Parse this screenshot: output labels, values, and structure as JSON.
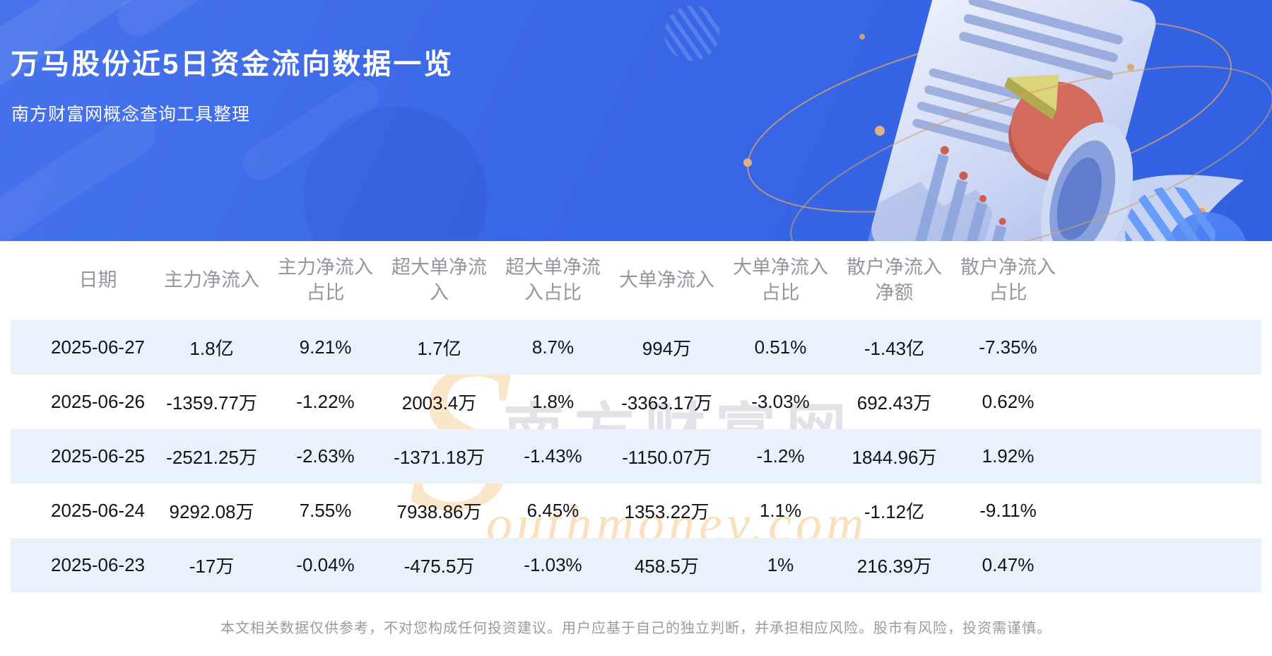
{
  "hero": {
    "title": "万马股份近5日资金流向数据一览",
    "subtitle": "南方财富网概念查询工具整理"
  },
  "chart_data": {
    "type": "table",
    "title": "万马股份近5日资金流向数据一览",
    "columns": [
      "日期",
      "主力净流入",
      "主力净流入占比",
      "超大单净流入",
      "超大单净流入占比",
      "大单净流入",
      "大单净流入占比",
      "散户净流入净额",
      "散户净流入占比"
    ],
    "rows": [
      [
        "2025-06-27",
        "1.8亿",
        "9.21%",
        "1.7亿",
        "8.7%",
        "994万",
        "0.51%",
        "-1.43亿",
        "-7.35%"
      ],
      [
        "2025-06-26",
        "-1359.77万",
        "-1.22%",
        "2003.4万",
        "1.8%",
        "-3363.17万",
        "-3.03%",
        "692.43万",
        "0.62%"
      ],
      [
        "2025-06-25",
        "-2521.25万",
        "-2.63%",
        "-1371.18万",
        "-1.43%",
        "-1150.07万",
        "-1.2%",
        "1844.96万",
        "1.92%"
      ],
      [
        "2025-06-24",
        "9292.08万",
        "7.55%",
        "7938.86万",
        "6.45%",
        "1353.22万",
        "1.1%",
        "-1.12亿",
        "-9.11%"
      ],
      [
        "2025-06-23",
        "-17万",
        "-0.04%",
        "-475.5万",
        "-1.03%",
        "458.5万",
        "1%",
        "216.39万",
        "0.47%"
      ]
    ]
  },
  "table": {
    "display_headers": [
      "日期",
      "主力净流入",
      "主力净流入\n占比",
      "超大单净流\n入",
      "超大单净流\n入占比",
      "大单净流入",
      "大单净流入\n占比",
      "散户净流入\n净额",
      "散户净流入\n占比"
    ]
  },
  "watermark": {
    "s": "S",
    "cn": "南方财富网",
    "en": "outhmoney.com"
  },
  "footer": {
    "disclaimer": "本文相关数据仅供参考，不对您构成任何投资建议。用户应基于自己的独立判断，并承担相应风险。股市有风险，投资需谨慎。"
  },
  "colors": {
    "hero_blue": "#3a67e6",
    "stripe_row": "#e9f1fa",
    "header_text": "#93979e",
    "value_text": "#141416",
    "footer_text": "#9b9b9b",
    "orbit_orange": "#cfa06e",
    "teal_accent": "#2bd0bd",
    "pie_red": "#d26a5e",
    "pie_yellow": "#dcd478",
    "watermark_orange": "#f5c688",
    "watermark_gray": "#b9b9c8"
  }
}
